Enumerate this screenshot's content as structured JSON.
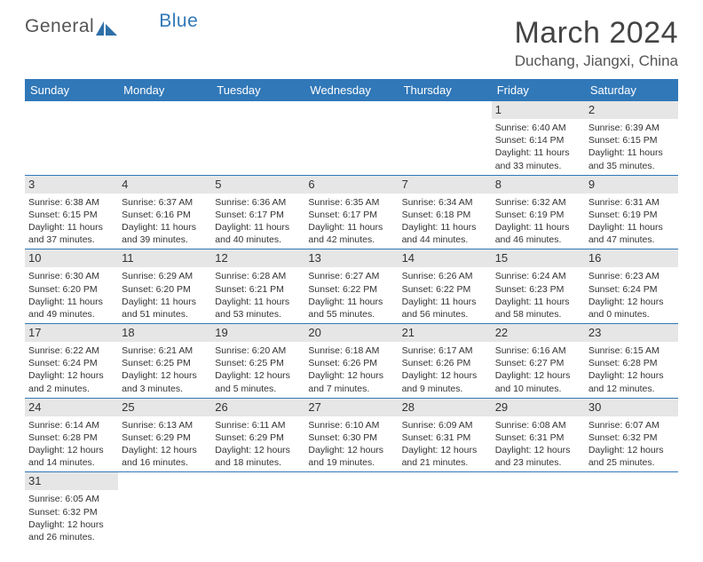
{
  "logo": {
    "text1": "General",
    "text2": "Blue"
  },
  "title": "March 2024",
  "location": "Duchang, Jiangxi, China",
  "colors": {
    "header_bg": "#3178b8",
    "header_text": "#ffffff",
    "daynum_bg": "#e6e6e6",
    "border": "#3178b8",
    "body_text": "#333333",
    "background": "#ffffff"
  },
  "font": {
    "title_fontsize": 34,
    "location_fontsize": 17,
    "th_fontsize": 13,
    "cell_fontsize": 10.5
  },
  "weekdays": [
    "Sunday",
    "Monday",
    "Tuesday",
    "Wednesday",
    "Thursday",
    "Friday",
    "Saturday"
  ],
  "weeks": [
    [
      null,
      null,
      null,
      null,
      null,
      {
        "n": "1",
        "sr": "Sunrise: 6:40 AM",
        "ss": "Sunset: 6:14 PM",
        "dl1": "Daylight: 11 hours",
        "dl2": "and 33 minutes."
      },
      {
        "n": "2",
        "sr": "Sunrise: 6:39 AM",
        "ss": "Sunset: 6:15 PM",
        "dl1": "Daylight: 11 hours",
        "dl2": "and 35 minutes."
      }
    ],
    [
      {
        "n": "3",
        "sr": "Sunrise: 6:38 AM",
        "ss": "Sunset: 6:15 PM",
        "dl1": "Daylight: 11 hours",
        "dl2": "and 37 minutes."
      },
      {
        "n": "4",
        "sr": "Sunrise: 6:37 AM",
        "ss": "Sunset: 6:16 PM",
        "dl1": "Daylight: 11 hours",
        "dl2": "and 39 minutes."
      },
      {
        "n": "5",
        "sr": "Sunrise: 6:36 AM",
        "ss": "Sunset: 6:17 PM",
        "dl1": "Daylight: 11 hours",
        "dl2": "and 40 minutes."
      },
      {
        "n": "6",
        "sr": "Sunrise: 6:35 AM",
        "ss": "Sunset: 6:17 PM",
        "dl1": "Daylight: 11 hours",
        "dl2": "and 42 minutes."
      },
      {
        "n": "7",
        "sr": "Sunrise: 6:34 AM",
        "ss": "Sunset: 6:18 PM",
        "dl1": "Daylight: 11 hours",
        "dl2": "and 44 minutes."
      },
      {
        "n": "8",
        "sr": "Sunrise: 6:32 AM",
        "ss": "Sunset: 6:19 PM",
        "dl1": "Daylight: 11 hours",
        "dl2": "and 46 minutes."
      },
      {
        "n": "9",
        "sr": "Sunrise: 6:31 AM",
        "ss": "Sunset: 6:19 PM",
        "dl1": "Daylight: 11 hours",
        "dl2": "and 47 minutes."
      }
    ],
    [
      {
        "n": "10",
        "sr": "Sunrise: 6:30 AM",
        "ss": "Sunset: 6:20 PM",
        "dl1": "Daylight: 11 hours",
        "dl2": "and 49 minutes."
      },
      {
        "n": "11",
        "sr": "Sunrise: 6:29 AM",
        "ss": "Sunset: 6:20 PM",
        "dl1": "Daylight: 11 hours",
        "dl2": "and 51 minutes."
      },
      {
        "n": "12",
        "sr": "Sunrise: 6:28 AM",
        "ss": "Sunset: 6:21 PM",
        "dl1": "Daylight: 11 hours",
        "dl2": "and 53 minutes."
      },
      {
        "n": "13",
        "sr": "Sunrise: 6:27 AM",
        "ss": "Sunset: 6:22 PM",
        "dl1": "Daylight: 11 hours",
        "dl2": "and 55 minutes."
      },
      {
        "n": "14",
        "sr": "Sunrise: 6:26 AM",
        "ss": "Sunset: 6:22 PM",
        "dl1": "Daylight: 11 hours",
        "dl2": "and 56 minutes."
      },
      {
        "n": "15",
        "sr": "Sunrise: 6:24 AM",
        "ss": "Sunset: 6:23 PM",
        "dl1": "Daylight: 11 hours",
        "dl2": "and 58 minutes."
      },
      {
        "n": "16",
        "sr": "Sunrise: 6:23 AM",
        "ss": "Sunset: 6:24 PM",
        "dl1": "Daylight: 12 hours",
        "dl2": "and 0 minutes."
      }
    ],
    [
      {
        "n": "17",
        "sr": "Sunrise: 6:22 AM",
        "ss": "Sunset: 6:24 PM",
        "dl1": "Daylight: 12 hours",
        "dl2": "and 2 minutes."
      },
      {
        "n": "18",
        "sr": "Sunrise: 6:21 AM",
        "ss": "Sunset: 6:25 PM",
        "dl1": "Daylight: 12 hours",
        "dl2": "and 3 minutes."
      },
      {
        "n": "19",
        "sr": "Sunrise: 6:20 AM",
        "ss": "Sunset: 6:25 PM",
        "dl1": "Daylight: 12 hours",
        "dl2": "and 5 minutes."
      },
      {
        "n": "20",
        "sr": "Sunrise: 6:18 AM",
        "ss": "Sunset: 6:26 PM",
        "dl1": "Daylight: 12 hours",
        "dl2": "and 7 minutes."
      },
      {
        "n": "21",
        "sr": "Sunrise: 6:17 AM",
        "ss": "Sunset: 6:26 PM",
        "dl1": "Daylight: 12 hours",
        "dl2": "and 9 minutes."
      },
      {
        "n": "22",
        "sr": "Sunrise: 6:16 AM",
        "ss": "Sunset: 6:27 PM",
        "dl1": "Daylight: 12 hours",
        "dl2": "and 10 minutes."
      },
      {
        "n": "23",
        "sr": "Sunrise: 6:15 AM",
        "ss": "Sunset: 6:28 PM",
        "dl1": "Daylight: 12 hours",
        "dl2": "and 12 minutes."
      }
    ],
    [
      {
        "n": "24",
        "sr": "Sunrise: 6:14 AM",
        "ss": "Sunset: 6:28 PM",
        "dl1": "Daylight: 12 hours",
        "dl2": "and 14 minutes."
      },
      {
        "n": "25",
        "sr": "Sunrise: 6:13 AM",
        "ss": "Sunset: 6:29 PM",
        "dl1": "Daylight: 12 hours",
        "dl2": "and 16 minutes."
      },
      {
        "n": "26",
        "sr": "Sunrise: 6:11 AM",
        "ss": "Sunset: 6:29 PM",
        "dl1": "Daylight: 12 hours",
        "dl2": "and 18 minutes."
      },
      {
        "n": "27",
        "sr": "Sunrise: 6:10 AM",
        "ss": "Sunset: 6:30 PM",
        "dl1": "Daylight: 12 hours",
        "dl2": "and 19 minutes."
      },
      {
        "n": "28",
        "sr": "Sunrise: 6:09 AM",
        "ss": "Sunset: 6:31 PM",
        "dl1": "Daylight: 12 hours",
        "dl2": "and 21 minutes."
      },
      {
        "n": "29",
        "sr": "Sunrise: 6:08 AM",
        "ss": "Sunset: 6:31 PM",
        "dl1": "Daylight: 12 hours",
        "dl2": "and 23 minutes."
      },
      {
        "n": "30",
        "sr": "Sunrise: 6:07 AM",
        "ss": "Sunset: 6:32 PM",
        "dl1": "Daylight: 12 hours",
        "dl2": "and 25 minutes."
      }
    ],
    [
      {
        "n": "31",
        "sr": "Sunrise: 6:05 AM",
        "ss": "Sunset: 6:32 PM",
        "dl1": "Daylight: 12 hours",
        "dl2": "and 26 minutes."
      },
      null,
      null,
      null,
      null,
      null,
      null
    ]
  ]
}
